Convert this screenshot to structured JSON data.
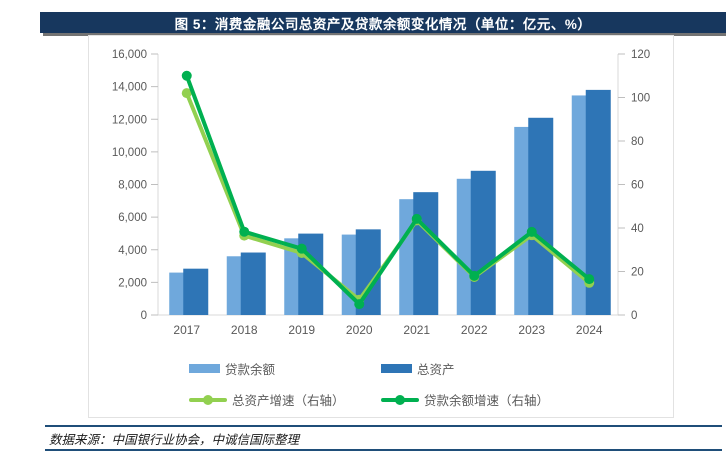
{
  "header": {
    "title": "图 5：消费金融公司总资产及贷款余额变化情况（单位：亿元、%）",
    "bg_color": "#17375E",
    "text_color": "#FFFFFF"
  },
  "footer": {
    "source": "数据来源：中国银行业协会，中诚信国际整理",
    "rule_color": "#1F4E79"
  },
  "chart_data": {
    "type": "bar",
    "subtype": "combo-bar-line-dual-axis",
    "title": "消费金融公司总资产及贷款余额变化情况",
    "units": "亿元、%",
    "categories": [
      "2017",
      "2018",
      "2019",
      "2020",
      "2021",
      "2022",
      "2023",
      "2024"
    ],
    "series": [
      {
        "name": "贷款余额",
        "key": "loan-balance",
        "type": "bar",
        "axis": "left",
        "color": "#6FA8DC",
        "values": [
          2600,
          3600,
          4700,
          4930,
          7100,
          8350,
          11530,
          13460
        ]
      },
      {
        "name": "总资产",
        "key": "total-assets",
        "type": "bar",
        "axis": "left",
        "color": "#2E75B6",
        "values": [
          2840,
          3830,
          4990,
          5250,
          7530,
          8840,
          12090,
          13800
        ]
      },
      {
        "name": "总资产增速（右轴）",
        "key": "total-assets-growth",
        "type": "line",
        "axis": "right",
        "color": "#92D050",
        "values": [
          102,
          36.5,
          28.5,
          7,
          43.5,
          17.5,
          36.7,
          14.8
        ]
      },
      {
        "name": "贷款余额增速（右轴）",
        "key": "loan-balance-growth",
        "type": "line",
        "axis": "right",
        "color": "#00B050",
        "values": [
          110,
          38.3,
          30.5,
          5,
          44.2,
          18,
          38.2,
          16.5
        ]
      }
    ],
    "left_axis": {
      "min": 0,
      "max": 16000,
      "step": 2000,
      "tick_labels": [
        "0",
        "2,000",
        "4,000",
        "6,000",
        "8,000",
        "10,000",
        "12,000",
        "14,000",
        "16,000"
      ]
    },
    "right_axis": {
      "min": 0,
      "max": 120,
      "step": 20,
      "tick_labels": [
        "0",
        "20",
        "40",
        "60",
        "80",
        "100",
        "120"
      ]
    },
    "grid": false,
    "legend_position": "bottom",
    "axis_text_color": "#595959",
    "axis_line_color": "#D9D9D9",
    "tick_color": "#BFBFBF"
  }
}
